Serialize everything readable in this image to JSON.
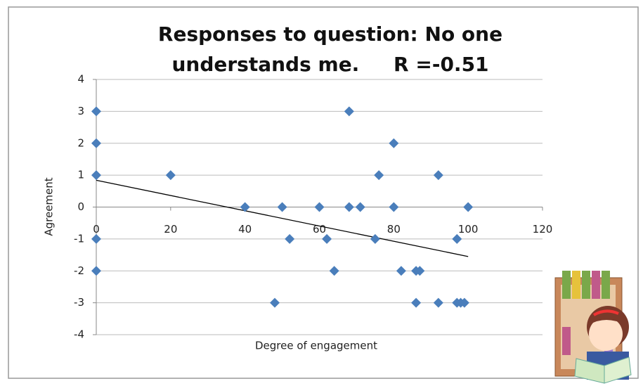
{
  "chart_data": {
    "type": "scatter",
    "title": [
      "Responses to question: No one",
      "understands me.     R =-0.51"
    ],
    "x_label": "Degree of engagement",
    "y_label": "Agreement",
    "series": [
      {
        "color": "#4a7ebb",
        "x": [
          0,
          0,
          0,
          0,
          0,
          20,
          40,
          50,
          52,
          60,
          62,
          64,
          48,
          68,
          68,
          71,
          75,
          76,
          80,
          80,
          82,
          86,
          87,
          86,
          92,
          92,
          97,
          97,
          98,
          99,
          100
        ],
        "values": [
          3,
          2,
          1,
          -1,
          -2,
          1,
          0,
          0,
          -1,
          0,
          -1,
          -2,
          -3,
          3,
          0,
          0,
          -1,
          1,
          2,
          0,
          -2,
          -2,
          -2,
          -3,
          1,
          -3,
          -1,
          -3,
          -3,
          -3,
          0
        ]
      }
    ],
    "trendline": {
      "x": [
        0,
        100
      ],
      "values": [
        0.84,
        -1.55
      ],
      "color": "#000000"
    },
    "xlim": [
      0,
      120
    ],
    "xticks": [
      0,
      20,
      40,
      60,
      80,
      100,
      120
    ],
    "ylim": [
      -4,
      4
    ],
    "yticks": [
      -4,
      -3,
      -2,
      -1,
      0,
      1,
      2,
      3,
      4
    ],
    "grid": true
  }
}
